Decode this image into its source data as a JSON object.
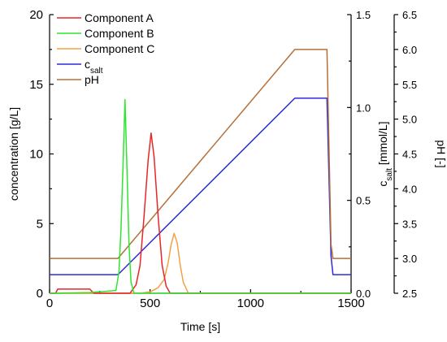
{
  "chart_data": {
    "type": "line",
    "title": "",
    "xlabel": "Time [s]",
    "xlim": [
      0,
      1500
    ],
    "x_ticks": [
      0,
      500,
      1000,
      1500
    ],
    "y_axes": [
      {
        "id": "conc",
        "label": "concentration [g/L]",
        "ylim": [
          0,
          20
        ],
        "ticks": [
          0,
          5,
          10,
          15,
          20
        ],
        "position": "left"
      },
      {
        "id": "salt",
        "label_main": "c",
        "label_sub": "salt",
        "label_unit": " [mmol/L]",
        "ylim": [
          0,
          1.5
        ],
        "ticks": [
          "0.0",
          "0.5",
          "1.0",
          "1.5"
        ],
        "position": "right"
      },
      {
        "id": "ph",
        "label": "pH [-]",
        "ylim": [
          2.5,
          6.5
        ],
        "ticks": [
          "2.5",
          "3.0",
          "3.5",
          "4.0",
          "4.5",
          "5.0",
          "5.5",
          "6.0",
          "6.5"
        ],
        "position": "right-outer"
      }
    ],
    "grid": false,
    "legend": {
      "placement": "top-left",
      "entries": [
        {
          "name": "Component A",
          "sub": "",
          "color": "#e8262a"
        },
        {
          "name": "Component B",
          "sub": "",
          "color": "#2ee62e"
        },
        {
          "name": "Component C",
          "sub": "",
          "color": "#f5a044"
        },
        {
          "name": "c",
          "sub": "salt",
          "color": "#2b2bdc"
        },
        {
          "name": "pH",
          "sub": "",
          "color": "#b5703a"
        }
      ]
    },
    "series": [
      {
        "name": "Component A",
        "axis": "conc",
        "color": "#e8262a",
        "x": [
          0,
          30,
          40,
          200,
          210,
          220,
          400,
          430,
          450,
          470,
          490,
          505,
          520,
          540,
          560,
          580,
          600,
          1500
        ],
        "y": [
          0,
          0,
          0.3,
          0.3,
          0.15,
          0,
          0,
          0.6,
          2.0,
          5.5,
          9.5,
          11.5,
          9.8,
          5.5,
          2.0,
          0.5,
          0,
          0
        ]
      },
      {
        "name": "Component B",
        "axis": "conc",
        "color": "#2ee62e",
        "x": [
          0,
          200,
          330,
          345,
          355,
          365,
          375,
          385,
          395,
          405,
          420,
          1500
        ],
        "y": [
          0,
          0.05,
          0.2,
          1.5,
          4.5,
          9.0,
          13.9,
          9.0,
          3.5,
          0.8,
          0,
          0
        ]
      },
      {
        "name": "Component C",
        "axis": "conc",
        "color": "#f5a044",
        "x": [
          0,
          450,
          500,
          540,
          570,
          590,
          605,
          620,
          635,
          650,
          665,
          690,
          1500
        ],
        "y": [
          0,
          0,
          0.1,
          0.4,
          1.0,
          2.2,
          3.5,
          4.3,
          3.6,
          2.0,
          0.8,
          0,
          0
        ]
      },
      {
        "name": "c_salt",
        "axis": "salt",
        "color": "#2b2bdc",
        "x": [
          0,
          340,
          1220,
          1380,
          1400,
          1410,
          1500
        ],
        "y": [
          0.1,
          0.1,
          1.05,
          1.05,
          0.2,
          0.1,
          0.1
        ]
      },
      {
        "name": "pH",
        "axis": "ph",
        "color": "#b5703a",
        "x": [
          0,
          340,
          1220,
          1380,
          1400,
          1410,
          1500
        ],
        "y": [
          3.0,
          3.0,
          6.0,
          6.0,
          3.2,
          3.0,
          3.0
        ]
      }
    ]
  }
}
